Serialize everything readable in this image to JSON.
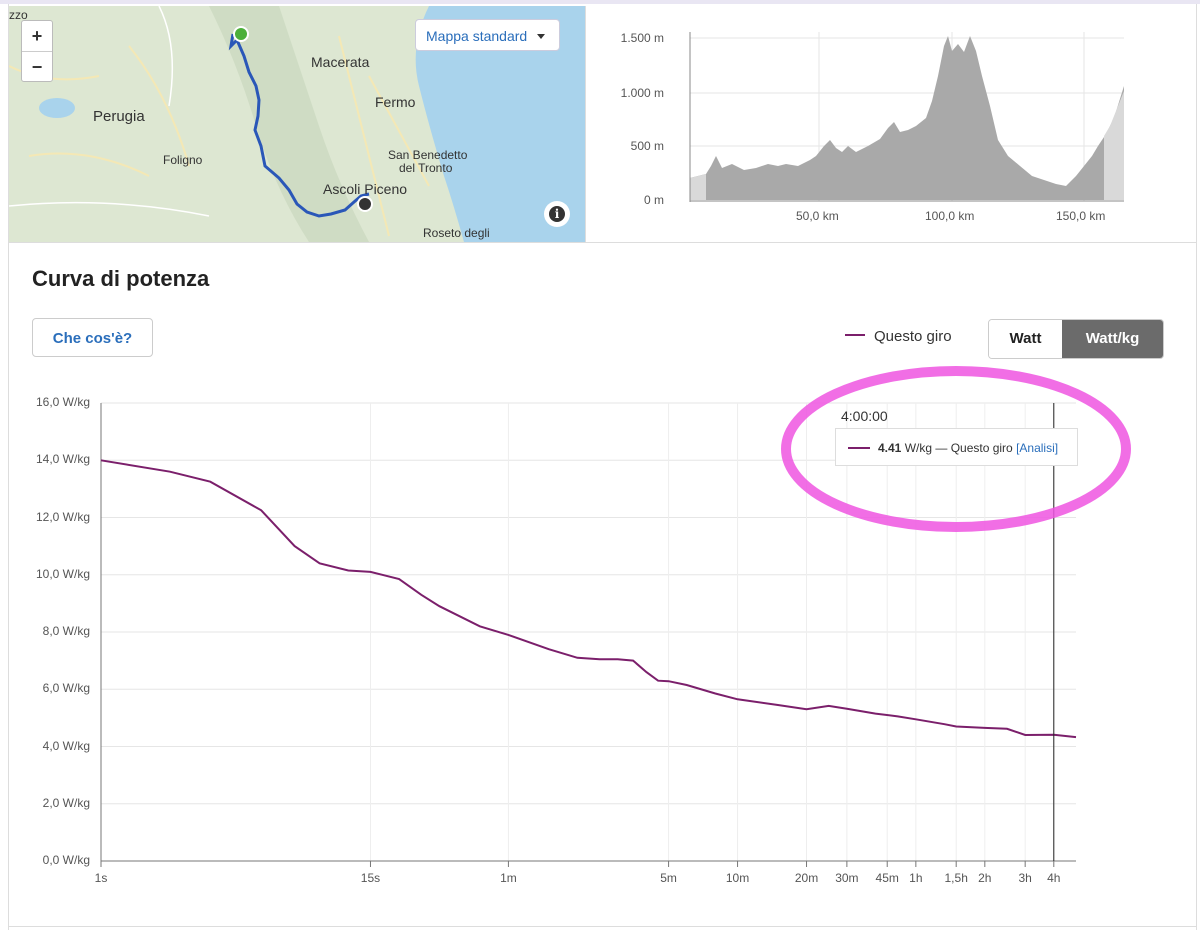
{
  "map": {
    "zoom_in": "+",
    "zoom_out": "−",
    "select_label": "Mappa standard",
    "labels": [
      {
        "text": "zzo",
        "size": 12
      },
      {
        "text": "Macerata",
        "size": 14
      },
      {
        "text": "Perugia",
        "size": 15
      },
      {
        "text": "Fermo",
        "size": 14
      },
      {
        "text": "Foligno",
        "size": 12
      },
      {
        "text": "San Benedetto",
        "size": 12
      },
      {
        "text": "del Tronto",
        "size": 12
      },
      {
        "text": "Ascoli Piceno",
        "size": 14
      },
      {
        "text": "Roseto degli",
        "size": 12
      }
    ],
    "info_icon": "i"
  },
  "elevation": {
    "y_ticks": [
      "1.500 m",
      "1.000 m",
      "500 m",
      "0 m"
    ],
    "x_ticks": [
      "50,0 km",
      "100,0 km",
      "150,0 km"
    ]
  },
  "power": {
    "title": "Curva di potenza",
    "what_button": "Che cos'è?",
    "legend_label": "Questo giro",
    "toggle_watt": "Watt",
    "toggle_wattkg": "Watt/kg",
    "tooltip": {
      "time": "4:00:00",
      "value": "4.41",
      "unit": " W/kg — Questo giro ",
      "link": "[Analisi]"
    }
  },
  "chart_data": {
    "type": "line",
    "title": "Curva di potenza",
    "xlabel": "",
    "ylabel": "",
    "ylim": [
      0,
      16
    ],
    "y_ticks": [
      "16,0 W/kg",
      "14,0 W/kg",
      "12,0 W/kg",
      "10,0 W/kg",
      "8,0 W/kg",
      "6,0 W/kg",
      "4,0 W/kg",
      "2,0 W/kg",
      "0,0 W/kg"
    ],
    "x_ticks": [
      "1s",
      "15s",
      "1m",
      "5m",
      "10m",
      "20m",
      "30m",
      "45m",
      "1h",
      "1,5h",
      "2h",
      "3h",
      "4h"
    ],
    "x_scale": "log",
    "grid": true,
    "legend_position": "top-right",
    "series": [
      {
        "name": "Questo giro",
        "color": "#7b1f6b",
        "x": [
          1,
          2,
          3,
          5,
          7,
          9,
          12,
          15,
          20,
          25,
          30,
          45,
          60,
          90,
          120,
          150,
          180,
          210,
          240,
          270,
          300,
          360,
          480,
          600,
          900,
          1200,
          1500,
          1800,
          2400,
          3000,
          3600,
          4800,
          5400,
          7200,
          9000,
          10800,
          14400,
          18000
        ],
        "y": [
          14.0,
          13.6,
          13.25,
          12.25,
          11.0,
          10.4,
          10.15,
          10.1,
          9.85,
          9.3,
          8.9,
          8.2,
          7.9,
          7.4,
          7.1,
          7.05,
          7.05,
          7.0,
          6.6,
          6.3,
          6.28,
          6.15,
          5.85,
          5.65,
          5.45,
          5.3,
          5.42,
          5.32,
          5.15,
          5.05,
          4.95,
          4.78,
          4.7,
          4.65,
          4.62,
          4.4,
          4.41,
          4.33
        ]
      }
    ]
  }
}
